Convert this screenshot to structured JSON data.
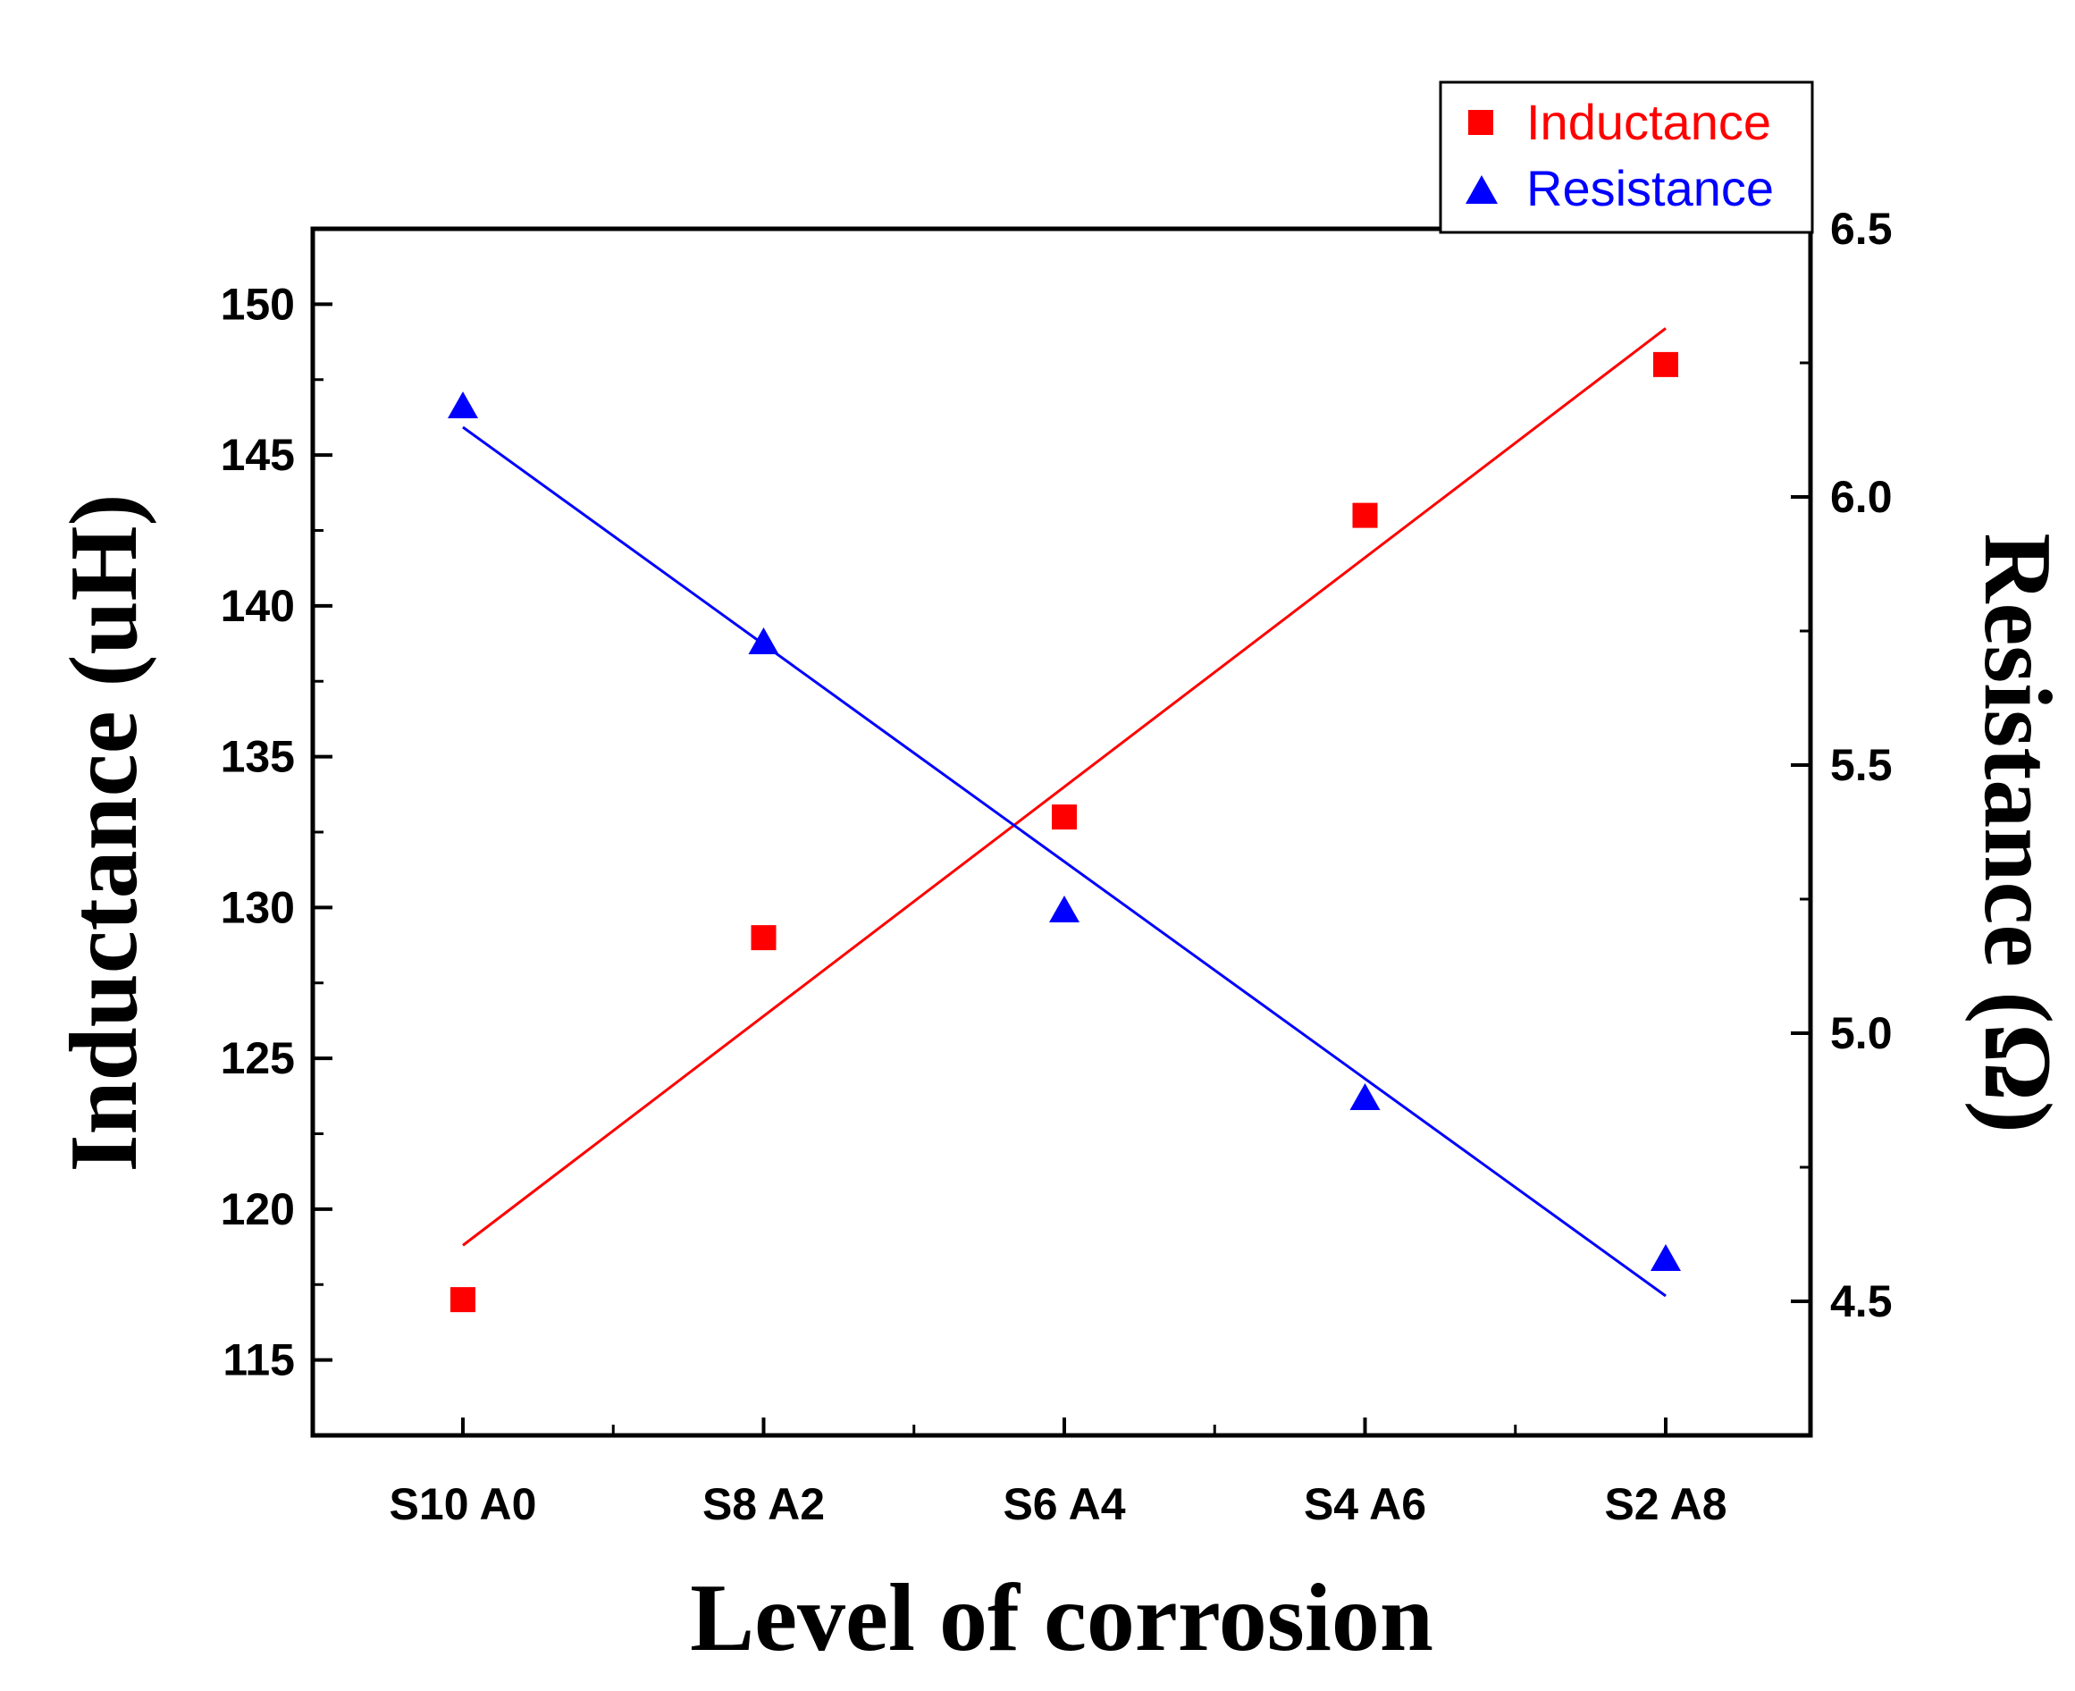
{
  "chart_data": {
    "type": "scatter",
    "title": "",
    "xlabel": "Level of corrosion",
    "ylabel_left": "Inductance (uH)",
    "ylabel_right": "Resistance (Ω)",
    "categories": [
      "S10 A0",
      "S8 A2",
      "S6 A4",
      "S4 A6",
      "S2 A8"
    ],
    "ylim_left": [
      112.5,
      152.5
    ],
    "yticks_left": [
      115,
      120,
      125,
      130,
      135,
      140,
      145,
      150
    ],
    "ylim_right": [
      4.25,
      6.5
    ],
    "yticks_right": [
      4.5,
      5.0,
      5.5,
      6.0,
      6.5
    ],
    "grid": false,
    "legend_position": "top-right",
    "series": [
      {
        "name": "Inductance",
        "axis": "left",
        "marker": "square",
        "color": "#ff0000",
        "values": [
          117,
          129,
          133,
          143,
          148
        ],
        "fit": {
          "start": 118.8,
          "end": 149.2
        }
      },
      {
        "name": "Resistance",
        "axis": "right",
        "marker": "triangle",
        "color": "#0000ff",
        "values": [
          6.17,
          5.73,
          5.23,
          4.88,
          4.58
        ],
        "fit": {
          "start": 6.13,
          "end": 4.51
        }
      }
    ]
  }
}
